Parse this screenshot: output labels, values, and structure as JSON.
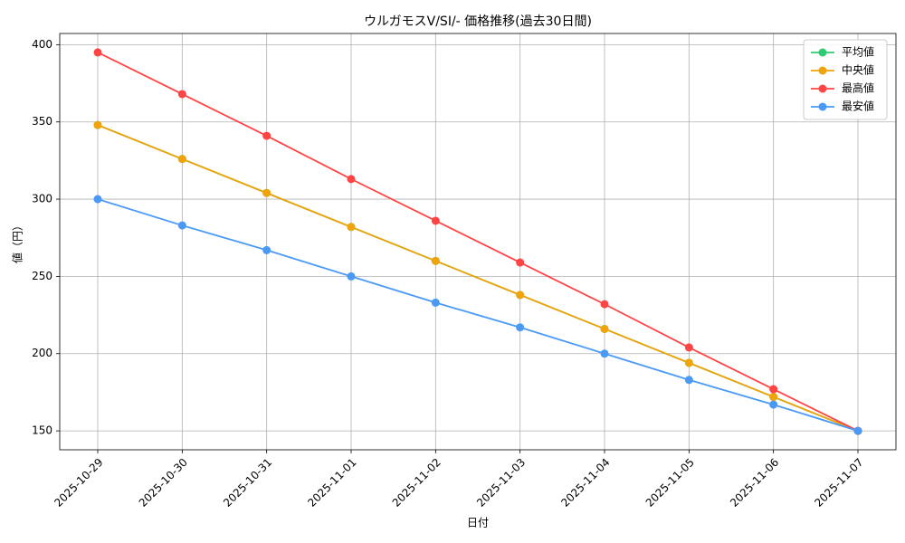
{
  "chart_data": {
    "type": "line",
    "title": "ウルガモスV/SI/- 価格推移(過去30日間)",
    "x_label": "日付",
    "y_label": "値（円）",
    "categories": [
      "2025-10-29",
      "2025-10-30",
      "2025-10-31",
      "2025-11-01",
      "2025-11-02",
      "2025-11-03",
      "2025-11-04",
      "2025-11-05",
      "2025-11-06",
      "2025-11-07"
    ],
    "series": [
      {
        "name": "平均値",
        "color": "#2ecc71",
        "values": [
          348,
          326,
          304,
          282,
          260,
          238,
          216,
          194,
          172,
          150
        ]
      },
      {
        "name": "中央値",
        "color": "#f0a30a",
        "values": [
          348,
          326,
          304,
          282,
          260,
          238,
          216,
          194,
          172,
          150
        ]
      },
      {
        "name": "最高値",
        "color": "#ff4444",
        "values": [
          395,
          368,
          341,
          313,
          286,
          259,
          232,
          204,
          177,
          150
        ]
      },
      {
        "name": "最安値",
        "color": "#4a9af5",
        "values": [
          300,
          283,
          267,
          250,
          233,
          217,
          200,
          183,
          167,
          150
        ]
      }
    ],
    "ylim": [
      137.75,
      407.25
    ],
    "yticks": [
      150,
      200,
      250,
      300,
      350,
      400
    ],
    "grid": true,
    "legend": "upper-right"
  }
}
